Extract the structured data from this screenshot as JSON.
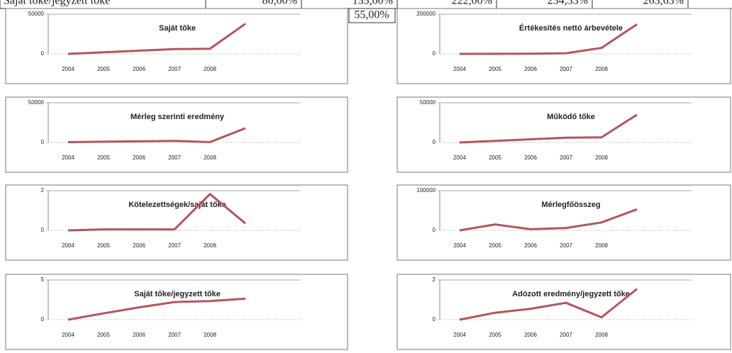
{
  "table": {
    "rows": [
      [
        "Saját tőke/jegyzett tőke",
        "80,00%",
        "155,00%",
        "222,00%",
        "234,33%",
        "263,63%"
      ]
    ],
    "extra_cell": "55,00%"
  },
  "chart_data": [
    {
      "type": "line",
      "title": "Saját tőke",
      "categories": [
        "2004",
        "2005",
        "2006",
        "2007",
        "2008",
        null
      ],
      "series": [
        {
          "color": "#b5545c",
          "values": [
            0,
            2000,
            4000,
            6000,
            6500,
            38000
          ]
        }
      ],
      "ylim": [
        0,
        50000
      ],
      "yticks": [
        0,
        50000
      ]
    },
    {
      "type": "line",
      "title": "Értékesítés nettó árbevétele",
      "categories": [
        "2004",
        "2005",
        "2006",
        "2007",
        "2008",
        null
      ],
      "series": [
        {
          "color": "#b5545c",
          "values": [
            0,
            500,
            1000,
            3000,
            30000,
            149000
          ]
        }
      ],
      "ylim": [
        0,
        200000
      ],
      "yticks": [
        0,
        200000
      ]
    },
    {
      "type": "line",
      "title": "Mérleg szerinti eredmény",
      "categories": [
        "2004",
        "2005",
        "2006",
        "2007",
        "2008",
        null
      ],
      "series": [
        {
          "color": "#b5545c",
          "values": [
            500,
            1000,
            1500,
            2000,
            500,
            18000
          ]
        }
      ],
      "ylim": [
        0,
        50000
      ],
      "yticks": [
        0,
        50000
      ]
    },
    {
      "type": "line",
      "title": "Működő tőke",
      "categories": [
        "2004",
        "2005",
        "2006",
        "2007",
        "2008",
        null
      ],
      "series": [
        {
          "color": "#b5545c",
          "values": [
            0,
            2000,
            4000,
            6000,
            6500,
            35000
          ]
        }
      ],
      "ylim": [
        0,
        50000
      ],
      "yticks": [
        0,
        50000
      ]
    },
    {
      "type": "line",
      "title": "Kötelezettségek/saját tőke",
      "categories": [
        "2004",
        "2005",
        "2006",
        "2007",
        "2008",
        null
      ],
      "series": [
        {
          "color": "#b5545c",
          "values": [
            0,
            0.05,
            0.05,
            0.05,
            1.83,
            0.35
          ]
        }
      ],
      "ylim": [
        0,
        2
      ],
      "yticks": [
        0,
        2
      ]
    },
    {
      "type": "line",
      "title": "Mérlegfőösszeg",
      "categories": [
        "2004",
        "2005",
        "2006",
        "2007",
        "2008",
        null
      ],
      "series": [
        {
          "color": "#b5545c",
          "values": [
            0,
            15000,
            3000,
            6000,
            20000,
            53000
          ]
        }
      ],
      "ylim": [
        0,
        100000
      ],
      "yticks": [
        0,
        100000
      ]
    },
    {
      "type": "line",
      "title": "Saját tőke/jegyzett tőke",
      "categories": [
        "2004",
        "2005",
        "2006",
        "2007",
        "2008",
        null
      ],
      "series": [
        {
          "color": "#b5545c",
          "values": [
            0,
            0.8,
            1.55,
            2.22,
            2.34,
            2.64
          ]
        }
      ],
      "ylim": [
        0,
        5
      ],
      "yticks": [
        0,
        5
      ]
    },
    {
      "type": "line",
      "title": "Adózott eredmény/jegyzett tőke",
      "categories": [
        "2004",
        "2005",
        "2006",
        "2007",
        "2008",
        null
      ],
      "series": [
        {
          "color": "#b5545c",
          "values": [
            0,
            0.35,
            0.55,
            0.85,
            0.12,
            1.55
          ]
        }
      ],
      "ylim": [
        0,
        2
      ],
      "yticks": [
        0,
        2
      ]
    }
  ]
}
